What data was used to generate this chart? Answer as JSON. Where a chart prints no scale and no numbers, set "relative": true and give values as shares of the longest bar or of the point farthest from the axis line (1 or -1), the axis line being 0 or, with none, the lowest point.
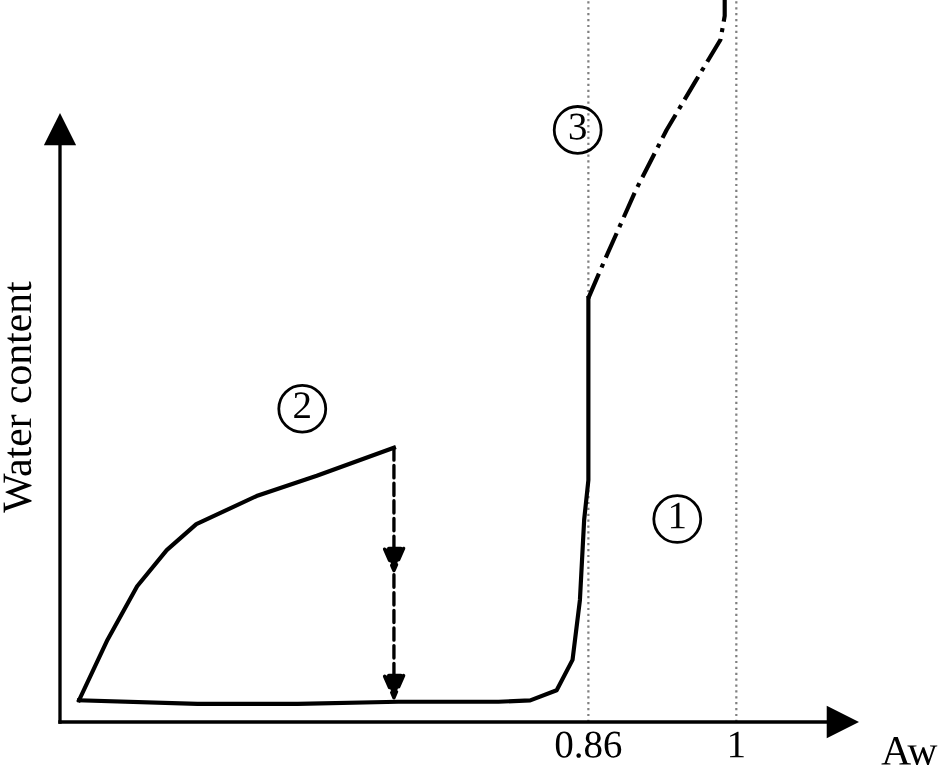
{
  "chart_data": {
    "type": "line",
    "relative": true,
    "xlabel": "Aw",
    "ylabel": "Water content",
    "xlim": [
      0.36,
      1.1
    ],
    "xticks": [
      0.86,
      1
    ],
    "grid": false,
    "legend": false,
    "marker": "none",
    "series": [
      {
        "color": "#000000",
        "line_style": "solid",
        "x": [
          0.378,
          0.49,
          0.585,
          0.68,
          0.775,
          0.805,
          0.83,
          0.845,
          0.852,
          0.856,
          0.86,
          0.86
        ],
        "values": [
          0.03,
          0.025,
          0.025,
          0.028,
          0.028,
          0.03,
          0.044,
          0.086,
          0.169,
          0.28,
          0.335,
          0.587
        ]
      },
      {
        "color": "#000000",
        "line_style": "solid",
        "x": [
          0.378,
          0.405,
          0.433,
          0.461,
          0.489,
          0.546,
          0.603,
          0.676
        ],
        "values": [
          0.03,
          0.114,
          0.188,
          0.238,
          0.274,
          0.313,
          0.341,
          0.38
        ]
      },
      {
        "color": "#000000",
        "line_style": "dashdot",
        "x": [
          0.86,
          0.877,
          0.905,
          0.934,
          0.962,
          0.985,
          0.989,
          0.989
        ],
        "values": [
          0.587,
          0.645,
          0.737,
          0.82,
          0.889,
          0.945,
          0.978,
          1.0
        ]
      }
    ],
    "ref_lines": [
      {
        "axis": "x",
        "value": 0.86,
        "color": "#808080",
        "line_style": "dotted"
      },
      {
        "axis": "x",
        "value": 1,
        "color": "#808080",
        "line_style": "dotted"
      }
    ],
    "annotations": [
      "1",
      "2",
      "3"
    ]
  }
}
